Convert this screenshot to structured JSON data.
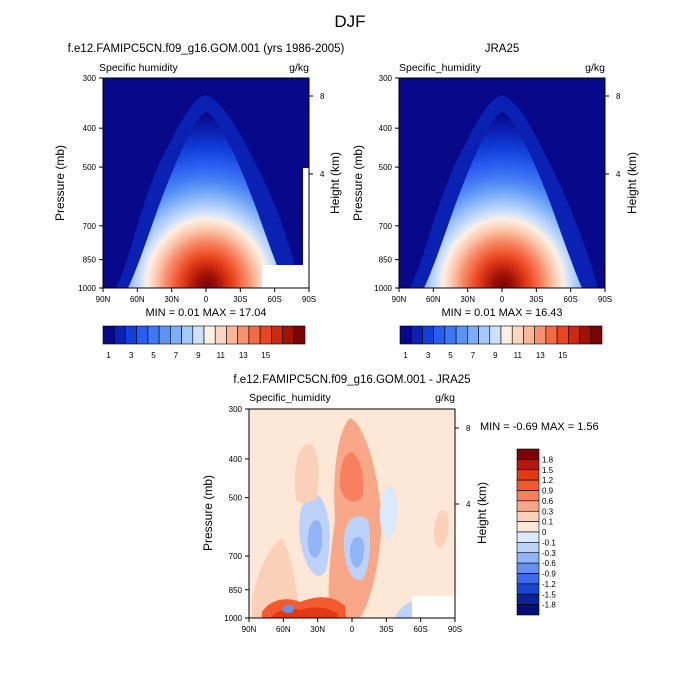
{
  "figure_title": "DJF",
  "chart_data": [
    {
      "type": "heatmap",
      "title": "f.e12.FAMIPC5CN.f09_g16.GOM.001 (yrs 1986-2005)",
      "left_label": "Specific humidity",
      "units": "g/kg",
      "ylabel": "Pressure (mb)",
      "ylabel_right": "Height (km)",
      "xticks": [
        "90N",
        "60N",
        "30N",
        "0",
        "30S",
        "60S",
        "90S"
      ],
      "yticks": [
        "300",
        "400",
        "500",
        "700",
        "850",
        "1000"
      ],
      "yticks_right": [
        "8",
        "4"
      ],
      "stats": "MIN =  0.01  MAX =  17.04",
      "min": 0.01,
      "max": 17.04,
      "peak_lat": 0
    },
    {
      "type": "heatmap",
      "title": "JRA25",
      "left_label": "Specific_humidity",
      "units": "g/kg",
      "ylabel": "Pressure (mb)",
      "ylabel_right": "Height (km)",
      "xticks": [
        "90N",
        "60N",
        "30N",
        "0",
        "30S",
        "60S",
        "90S"
      ],
      "yticks": [
        "300",
        "400",
        "500",
        "700",
        "850",
        "1000"
      ],
      "yticks_right": [
        "8",
        "4"
      ],
      "stats": "MIN =  0.01  MAX =  16.43",
      "min": 0.01,
      "max": 16.43,
      "peak_lat": 0
    },
    {
      "type": "heatmap",
      "title": "f.e12.FAMIPC5CN.f09_g16.GOM.001 - JRA25",
      "left_label": "Specific_humidity",
      "units": "g/kg",
      "ylabel": "Pressure (mb)",
      "ylabel_right": "Height (km)",
      "xticks": [
        "90N",
        "60N",
        "30N",
        "0",
        "30S",
        "60S",
        "90S"
      ],
      "yticks": [
        "300",
        "400",
        "500",
        "700",
        "850",
        "1000"
      ],
      "yticks_right": [
        "8",
        "4"
      ],
      "stats": "MIN = -0.69  MAX =   1.56",
      "min": -0.69,
      "max": 1.56
    }
  ],
  "colorbar_abs": {
    "labels": [
      "1",
      "3",
      "5",
      "7",
      "9",
      "11",
      "13",
      "15"
    ],
    "colors": [
      "#08088a",
      "#0a21b4",
      "#1040d8",
      "#2a5cf0",
      "#3f78f2",
      "#5b94f5",
      "#7daef7",
      "#a5c8fa",
      "#cde0fc",
      "#fcf0e6",
      "#fcd6c0",
      "#fab79a",
      "#f7916e",
      "#f46a44",
      "#e84520",
      "#cc2a10",
      "#a01208",
      "#7a0403"
    ]
  },
  "colorbar_diff": {
    "labels": [
      "1.8",
      "1.5",
      "1.2",
      "0.9",
      "0.6",
      "0.3",
      "0.1",
      "0",
      "-0.1",
      "-0.3",
      "-0.6",
      "-0.9",
      "-1.2",
      "-1.5",
      "-1.8"
    ],
    "colors": [
      "#7a0403",
      "#b01a0a",
      "#e03a15",
      "#f45a30",
      "#f68060",
      "#f8a888",
      "#fad0b8",
      "#fde8d8",
      "#dce8fc",
      "#bcd2fa",
      "#90b4f6",
      "#6490f2",
      "#3a6aeb",
      "#1a44cc",
      "#0a22a0",
      "#050e78"
    ]
  }
}
